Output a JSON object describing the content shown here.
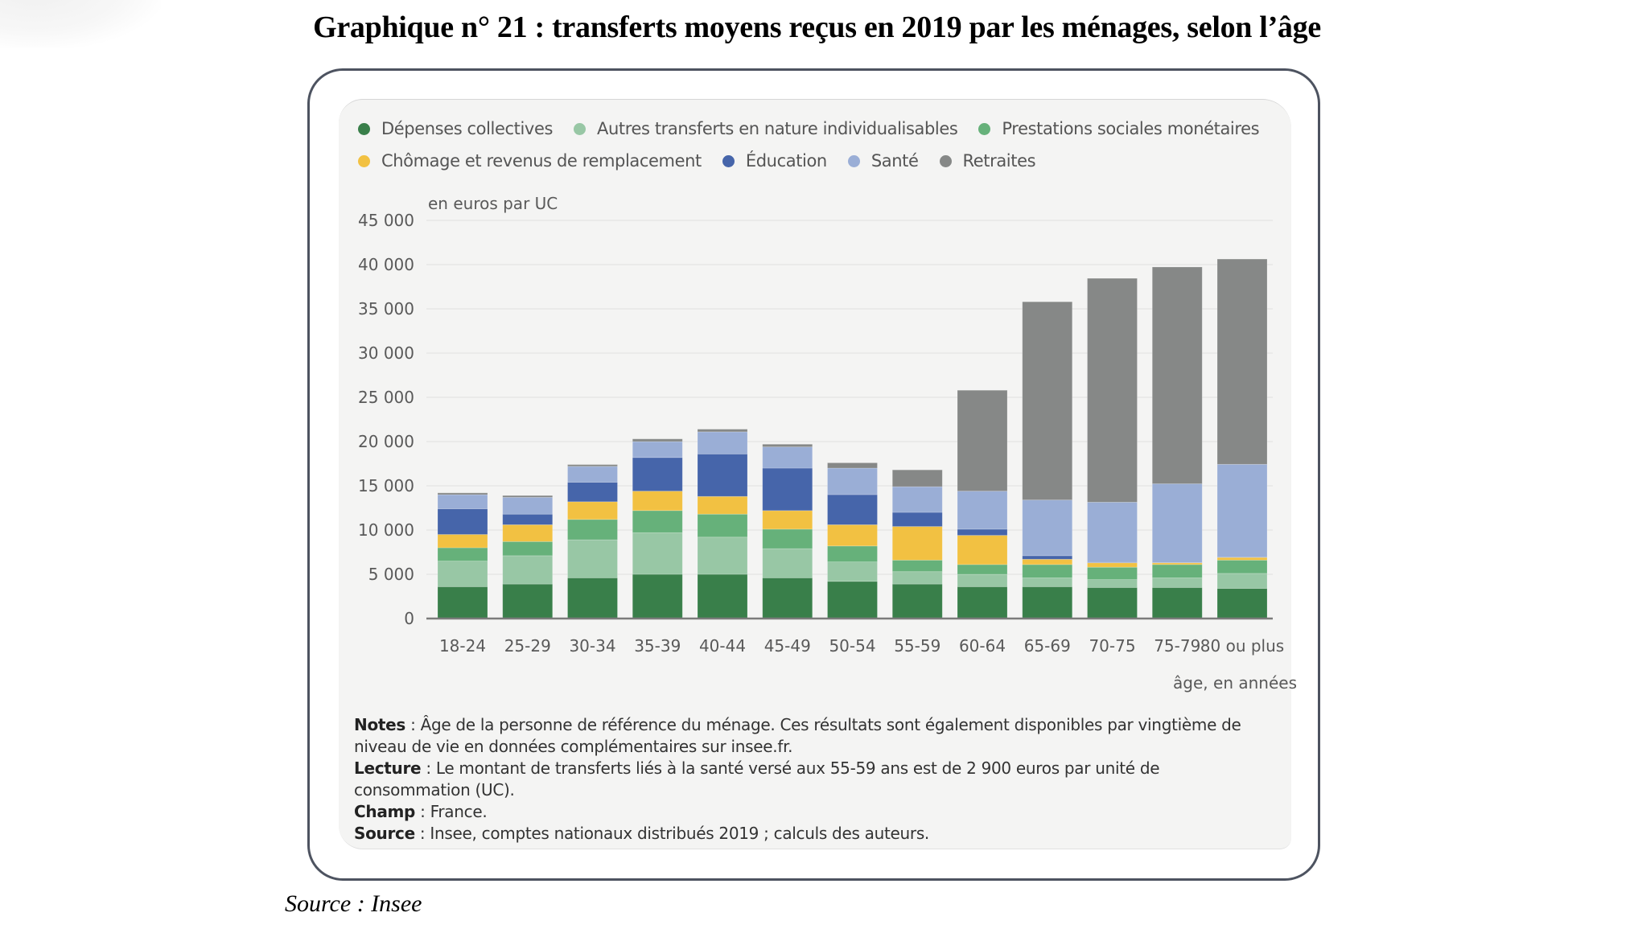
{
  "document": {
    "title": "Graphique n° 21 : transferts moyens reçus en 2019 par les ménages, selon l’âge",
    "footer_source": "Source : Insee"
  },
  "notes": [
    {
      "key": "Notes",
      "text": " : Âge de la personne de référence du ménage. Ces résultats sont également disponibles par vingtième de niveau de vie en données complémentaires sur insee.fr."
    },
    {
      "key": "Lecture",
      "text": " : Le montant de transferts liés à la santé versé aux 55-59 ans est de 2 900 euros par unité de consommation (UC)."
    },
    {
      "key": "Champ",
      "text": " : France."
    },
    {
      "key": "Source",
      "text": " : Insee, comptes nationaux distribués 2019 ; calculs des auteurs."
    }
  ],
  "chart_data": {
    "type": "bar",
    "stacked": true,
    "title": "",
    "ylabel": "en euros par UC",
    "xlabel": "âge, en années",
    "ylim": [
      0,
      45000
    ],
    "yticks": [
      0,
      5000,
      10000,
      15000,
      20000,
      25000,
      30000,
      35000,
      40000,
      45000
    ],
    "ytick_labels": [
      "0",
      "5 000",
      "10 000",
      "15 000",
      "20 000",
      "25 000",
      "30 000",
      "35 000",
      "40 000",
      "45 000"
    ],
    "grid": true,
    "legend_position": "top",
    "categories": [
      "18-24",
      "25-29",
      "30-34",
      "35-39",
      "40-44",
      "45-49",
      "50-54",
      "55-59",
      "60-64",
      "65-69",
      "70-75",
      "75-79",
      "80 ou plus"
    ],
    "series": [
      {
        "name": "Dépenses collectives",
        "color": "#397f4a",
        "values": [
          3600,
          3900,
          4600,
          5000,
          5000,
          4600,
          4200,
          3900,
          3600,
          3600,
          3500,
          3500,
          3400
        ]
      },
      {
        "name": "Autres transferts en nature individualisables",
        "color": "#98c7a5",
        "values": [
          2900,
          3200,
          4300,
          4700,
          4200,
          3300,
          2200,
          1400,
          1400,
          1000,
          900,
          1100,
          1700
        ]
      },
      {
        "name": "Prestations sociales monétaires",
        "color": "#66b17a",
        "values": [
          1500,
          1600,
          2300,
          2500,
          2600,
          2200,
          1800,
          1300,
          1100,
          1500,
          1400,
          1500,
          1500
        ]
      },
      {
        "name": "Chômage et revenus de remplacement",
        "color": "#f2c142",
        "values": [
          1500,
          1900,
          2000,
          2200,
          2000,
          2100,
          2400,
          3800,
          3300,
          600,
          500,
          200,
          300
        ]
      },
      {
        "name": "Éducation",
        "color": "#4665aa",
        "values": [
          2900,
          1200,
          2200,
          3800,
          4800,
          4800,
          3400,
          1600,
          700,
          400,
          50,
          30,
          30
        ]
      },
      {
        "name": "Santé",
        "color": "#9aaed6",
        "values": [
          1600,
          1900,
          1800,
          1800,
          2500,
          2400,
          3000,
          2900,
          4300,
          6300,
          6800,
          8900,
          10500
        ]
      },
      {
        "name": "Retraites",
        "color": "#868887",
        "values": [
          200,
          200,
          200,
          300,
          300,
          300,
          600,
          1900,
          11400,
          22400,
          25300,
          24500,
          23200
        ]
      }
    ]
  }
}
